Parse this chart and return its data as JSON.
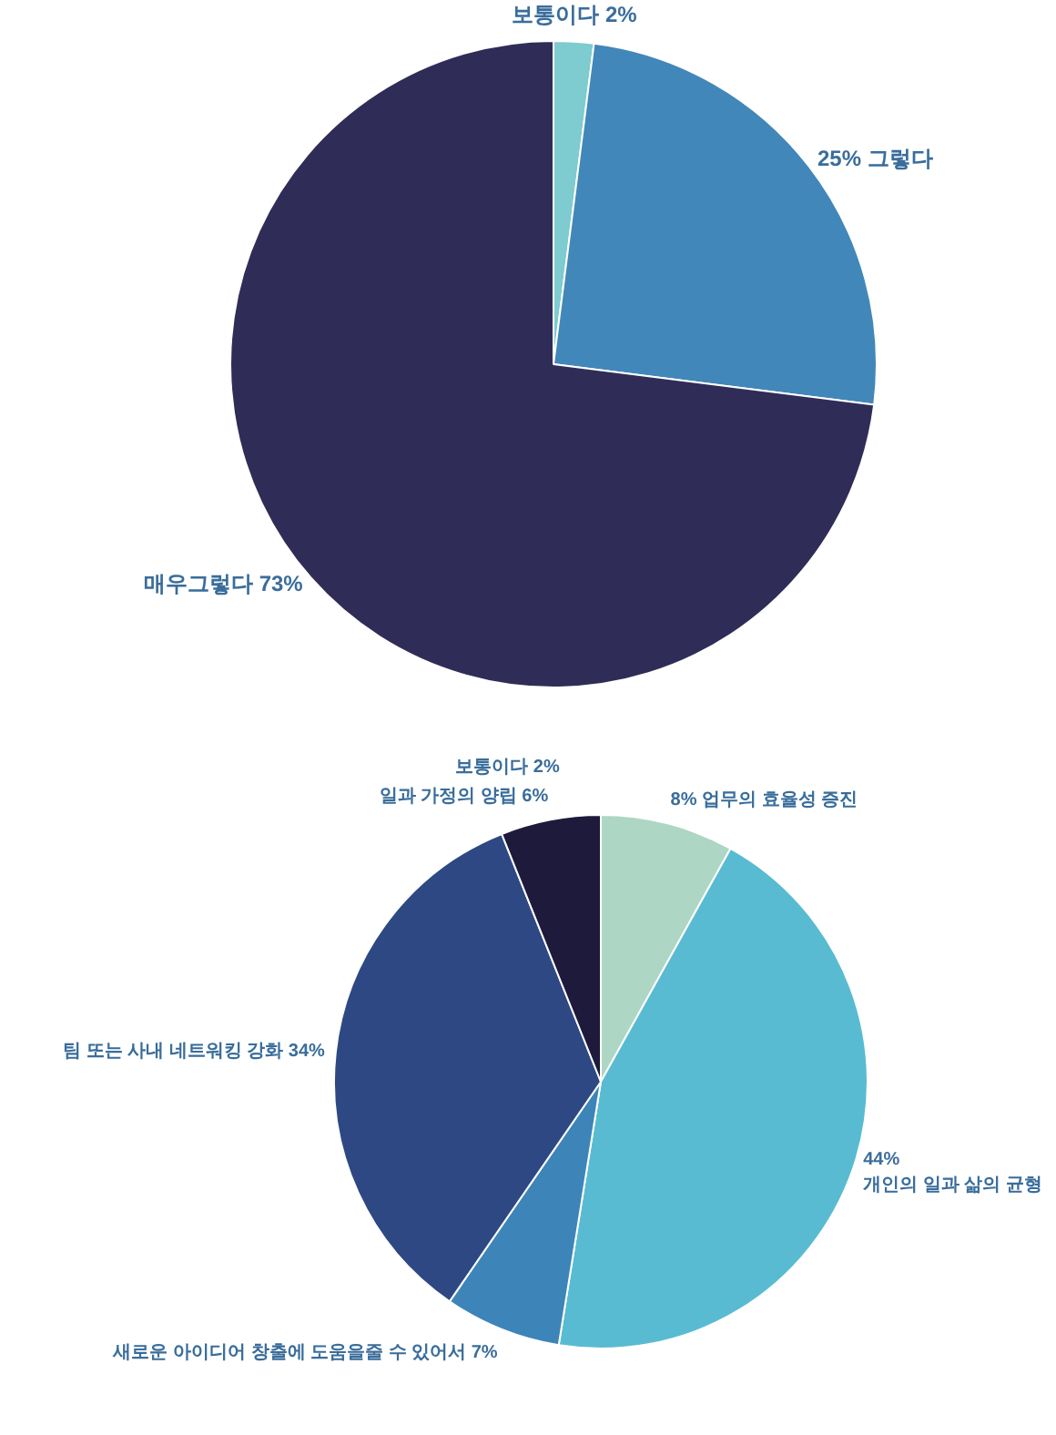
{
  "chart_data": [
    {
      "type": "pie",
      "categories": [
        "보통이다",
        "그렇다",
        "매우그렇다"
      ],
      "values": [
        2,
        25,
        73
      ],
      "value_labels": [
        "2%",
        "25%",
        "73%"
      ],
      "colors": [
        "#7ecbd0",
        "#4287b9",
        "#2f2d57"
      ],
      "legend": false
    },
    {
      "type": "pie",
      "categories": [
        "업무의 효율성 증진",
        "개인의 일과 삶의 균형",
        "새로운 아이디어 창출에 도움을줄 수 있어서",
        "팀 또는 사내 네트워킹 강화",
        "일과 가정의 양립"
      ],
      "values": [
        8,
        44,
        7,
        34,
        6
      ],
      "value_labels": [
        "8%",
        "44%",
        "7%",
        "34%",
        "6%"
      ],
      "colors": [
        "#add6c5",
        "#59bbd2",
        "#3d85b8",
        "#2e4884",
        "#1e1a3c"
      ],
      "legend": false,
      "annotations": [
        "보통이다 2%"
      ]
    }
  ]
}
